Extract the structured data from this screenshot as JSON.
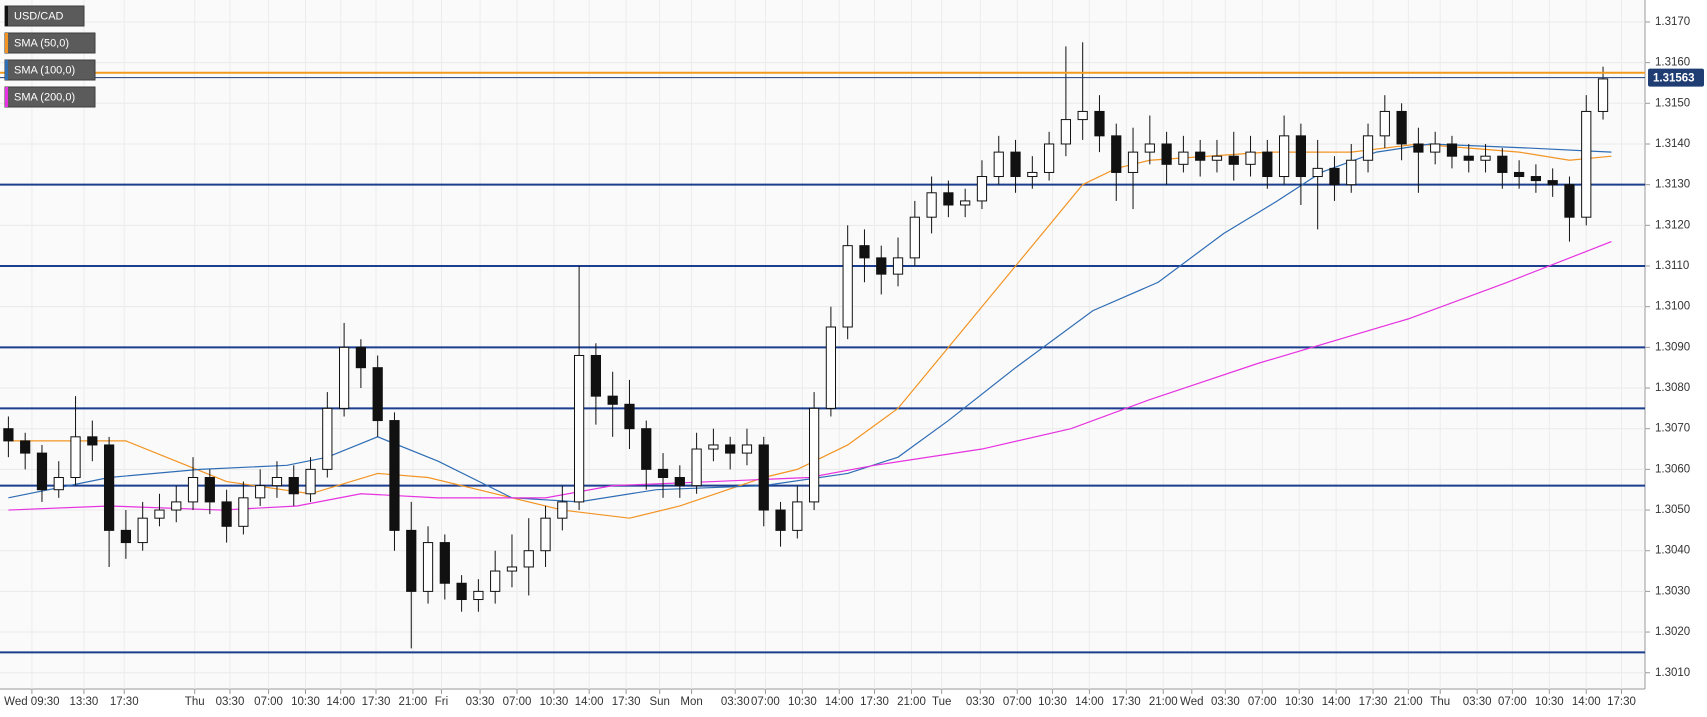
{
  "chart_data": {
    "type": "candlestick",
    "title": "USD/CAD",
    "xlim": [
      -0.5,
      97.5
    ],
    "ylim": [
      1.3006,
      1.31754
    ],
    "yticks": [
      {
        "value": 1.301,
        "label": "1.3010"
      },
      {
        "value": 1.302,
        "label": "1.3020"
      },
      {
        "value": 1.303,
        "label": "1.3030"
      },
      {
        "value": 1.304,
        "label": "1.3040"
      },
      {
        "value": 1.305,
        "label": "1.3050"
      },
      {
        "value": 1.306,
        "label": "1.3060"
      },
      {
        "value": 1.307,
        "label": "1.3070"
      },
      {
        "value": 1.308,
        "label": "1.3080"
      },
      {
        "value": 1.309,
        "label": "1.3090"
      },
      {
        "value": 1.31,
        "label": "1.3100"
      },
      {
        "value": 1.311,
        "label": "1.3110"
      },
      {
        "value": 1.312,
        "label": "1.3120"
      },
      {
        "value": 1.313,
        "label": "1.3130"
      },
      {
        "value": 1.314,
        "label": "1.3140"
      },
      {
        "value": 1.315,
        "label": "1.3150"
      },
      {
        "value": 1.316,
        "label": "1.3160"
      },
      {
        "value": 1.317,
        "label": "1.3170"
      }
    ],
    "xticks": [
      {
        "value": 1.4,
        "label": "Wed 09:30"
      },
      {
        "value": 4.5,
        "label": "13:30"
      },
      {
        "value": 6.9,
        "label": "17:30"
      },
      {
        "value": 11.1,
        "label": "Thu"
      },
      {
        "value": 13.2,
        "label": "03:30"
      },
      {
        "value": 15.5,
        "label": "07:00"
      },
      {
        "value": 17.7,
        "label": "10:30"
      },
      {
        "value": 19.8,
        "label": "14:00"
      },
      {
        "value": 21.9,
        "label": "17:30"
      },
      {
        "value": 24.1,
        "label": "21:00"
      },
      {
        "value": 25.8,
        "label": "Fri"
      },
      {
        "value": 28.1,
        "label": "03:30"
      },
      {
        "value": 30.3,
        "label": "07:00"
      },
      {
        "value": 32.5,
        "label": "10:30"
      },
      {
        "value": 34.6,
        "label": "14:00"
      },
      {
        "value": 36.8,
        "label": "17:30"
      },
      {
        "value": 38.8,
        "label": "Sun"
      },
      {
        "value": 40.7,
        "label": "Mon"
      },
      {
        "value": 43.3,
        "label": "03:30"
      },
      {
        "value": 45.1,
        "label": "07:00"
      },
      {
        "value": 47.3,
        "label": "10:30"
      },
      {
        "value": 49.5,
        "label": "14:00"
      },
      {
        "value": 51.6,
        "label": "17:30"
      },
      {
        "value": 53.8,
        "label": "21:00"
      },
      {
        "value": 55.6,
        "label": "Tue"
      },
      {
        "value": 57.9,
        "label": "03:30"
      },
      {
        "value": 60.1,
        "label": "07:00"
      },
      {
        "value": 62.2,
        "label": "10:30"
      },
      {
        "value": 64.4,
        "label": "14:00"
      },
      {
        "value": 66.6,
        "label": "17:30"
      },
      {
        "value": 68.8,
        "label": "21:00"
      },
      {
        "value": 70.5,
        "label": "Wed"
      },
      {
        "value": 72.5,
        "label": "03:30"
      },
      {
        "value": 74.7,
        "label": "07:00"
      },
      {
        "value": 76.9,
        "label": "10:30"
      },
      {
        "value": 79.1,
        "label": "14:00"
      },
      {
        "value": 81.3,
        "label": "17:30"
      },
      {
        "value": 83.4,
        "label": "21:00"
      },
      {
        "value": 85.3,
        "label": "Thu"
      },
      {
        "value": 87.5,
        "label": "03:30"
      },
      {
        "value": 89.6,
        "label": "07:00"
      },
      {
        "value": 91.8,
        "label": "10:30"
      },
      {
        "value": 94.0,
        "label": "14:00"
      },
      {
        "value": 96.1,
        "label": "17:30"
      }
    ],
    "grid": true,
    "color": "#111111",
    "candles": [
      [
        1.307,
        1.3073,
        1.3063,
        1.3067
      ],
      [
        1.3067,
        1.3069,
        1.306,
        1.3064
      ],
      [
        1.3064,
        1.3066,
        1.3052,
        1.3055
      ],
      [
        1.3055,
        1.3062,
        1.3053,
        1.3058
      ],
      [
        1.3058,
        1.3078,
        1.3056,
        1.3068
      ],
      [
        1.3068,
        1.3072,
        1.3062,
        1.3066
      ],
      [
        1.3066,
        1.3068,
        1.3036,
        1.3045
      ],
      [
        1.3045,
        1.305,
        1.3038,
        1.3042
      ],
      [
        1.3042,
        1.3052,
        1.304,
        1.3048
      ],
      [
        1.3048,
        1.3054,
        1.3046,
        1.305
      ],
      [
        1.305,
        1.3056,
        1.3047,
        1.3052
      ],
      [
        1.3052,
        1.3063,
        1.305,
        1.3058
      ],
      [
        1.3058,
        1.306,
        1.3049,
        1.3052
      ],
      [
        1.3052,
        1.3055,
        1.3042,
        1.3046
      ],
      [
        1.3046,
        1.3057,
        1.3044,
        1.3053
      ],
      [
        1.3053,
        1.306,
        1.3051,
        1.3056
      ],
      [
        1.3056,
        1.3062,
        1.3053,
        1.3058
      ],
      [
        1.3058,
        1.3061,
        1.3051,
        1.3054
      ],
      [
        1.3054,
        1.3063,
        1.3052,
        1.306
      ],
      [
        1.306,
        1.3079,
        1.3058,
        1.3075
      ],
      [
        1.3075,
        1.3096,
        1.3073,
        1.309
      ],
      [
        1.309,
        1.3092,
        1.308,
        1.3085
      ],
      [
        1.3085,
        1.3088,
        1.3068,
        1.3072
      ],
      [
        1.3072,
        1.3074,
        1.304,
        1.3045
      ],
      [
        1.3045,
        1.3052,
        1.3016,
        1.303
      ],
      [
        1.303,
        1.3046,
        1.3027,
        1.3042
      ],
      [
        1.3042,
        1.3044,
        1.3028,
        1.3032
      ],
      [
        1.3032,
        1.3034,
        1.3025,
        1.3028
      ],
      [
        1.3028,
        1.3033,
        1.3025,
        1.303
      ],
      [
        1.303,
        1.304,
        1.3027,
        1.3035
      ],
      [
        1.3035,
        1.3044,
        1.3031,
        1.3036
      ],
      [
        1.3036,
        1.3048,
        1.3029,
        1.304
      ],
      [
        1.304,
        1.3051,
        1.3036,
        1.3048
      ],
      [
        1.3048,
        1.3056,
        1.3045,
        1.3052
      ],
      [
        1.3052,
        1.311,
        1.305,
        1.3088
      ],
      [
        1.3088,
        1.3091,
        1.3071,
        1.3078
      ],
      [
        1.3078,
        1.3084,
        1.3068,
        1.3076
      ],
      [
        1.3076,
        1.3082,
        1.3065,
        1.307
      ],
      [
        1.307,
        1.3072,
        1.3055,
        1.306
      ],
      [
        1.306,
        1.3064,
        1.3053,
        1.3058
      ],
      [
        1.3058,
        1.3061,
        1.3053,
        1.3056
      ],
      [
        1.3056,
        1.3069,
        1.3054,
        1.3065
      ],
      [
        1.3065,
        1.307,
        1.3062,
        1.3066
      ],
      [
        1.3066,
        1.3068,
        1.306,
        1.3064
      ],
      [
        1.3064,
        1.307,
        1.3061,
        1.3066
      ],
      [
        1.3066,
        1.3068,
        1.3046,
        1.305
      ],
      [
        1.305,
        1.3052,
        1.3041,
        1.3045
      ],
      [
        1.3045,
        1.3056,
        1.3043,
        1.3052
      ],
      [
        1.3052,
        1.3079,
        1.305,
        1.3075
      ],
      [
        1.3075,
        1.31,
        1.3073,
        1.3095
      ],
      [
        1.3095,
        1.312,
        1.3092,
        1.3115
      ],
      [
        1.3115,
        1.3119,
        1.3106,
        1.3112
      ],
      [
        1.3112,
        1.3115,
        1.3103,
        1.3108
      ],
      [
        1.3108,
        1.3117,
        1.3105,
        1.3112
      ],
      [
        1.3112,
        1.3126,
        1.311,
        1.3122
      ],
      [
        1.3122,
        1.3132,
        1.3118,
        1.3128
      ],
      [
        1.3128,
        1.3131,
        1.3122,
        1.3125
      ],
      [
        1.3125,
        1.3129,
        1.3122,
        1.3126
      ],
      [
        1.3126,
        1.3136,
        1.3124,
        1.3132
      ],
      [
        1.3132,
        1.3142,
        1.313,
        1.3138
      ],
      [
        1.3138,
        1.3141,
        1.3128,
        1.3132
      ],
      [
        1.3132,
        1.3137,
        1.3129,
        1.3133
      ],
      [
        1.3133,
        1.3143,
        1.3131,
        1.314
      ],
      [
        1.314,
        1.3164,
        1.3137,
        1.3146
      ],
      [
        1.3146,
        1.3165,
        1.3141,
        1.3148
      ],
      [
        1.3148,
        1.3152,
        1.3138,
        1.3142
      ],
      [
        1.3142,
        1.3145,
        1.3126,
        1.3133
      ],
      [
        1.3133,
        1.3144,
        1.3124,
        1.3138
      ],
      [
        1.3138,
        1.3147,
        1.3135,
        1.314
      ],
      [
        1.314,
        1.3143,
        1.313,
        1.3135
      ],
      [
        1.3135,
        1.3142,
        1.3133,
        1.3138
      ],
      [
        1.3138,
        1.3141,
        1.3132,
        1.3136
      ],
      [
        1.3136,
        1.3141,
        1.3133,
        1.3137
      ],
      [
        1.3137,
        1.3143,
        1.3131,
        1.3135
      ],
      [
        1.3135,
        1.3142,
        1.3132,
        1.3138
      ],
      [
        1.3138,
        1.3141,
        1.3129,
        1.3132
      ],
      [
        1.3132,
        1.3147,
        1.313,
        1.3142
      ],
      [
        1.3142,
        1.3145,
        1.3125,
        1.3132
      ],
      [
        1.3132,
        1.3141,
        1.3119,
        1.3134
      ],
      [
        1.3134,
        1.3137,
        1.3126,
        1.313
      ],
      [
        1.313,
        1.314,
        1.3128,
        1.3136
      ],
      [
        1.3136,
        1.3145,
        1.3133,
        1.3142
      ],
      [
        1.3142,
        1.3152,
        1.3139,
        1.3148
      ],
      [
        1.3148,
        1.315,
        1.3136,
        1.314
      ],
      [
        1.314,
        1.3144,
        1.3128,
        1.3138
      ],
      [
        1.3138,
        1.3143,
        1.3135,
        1.314
      ],
      [
        1.314,
        1.3142,
        1.3134,
        1.3137
      ],
      [
        1.3137,
        1.314,
        1.3133,
        1.3136
      ],
      [
        1.3136,
        1.314,
        1.3133,
        1.3137
      ],
      [
        1.3137,
        1.3139,
        1.3129,
        1.3133
      ],
      [
        1.3133,
        1.3136,
        1.3129,
        1.3132
      ],
      [
        1.3132,
        1.3135,
        1.3128,
        1.3131
      ],
      [
        1.3131,
        1.3134,
        1.3127,
        1.313
      ],
      [
        1.313,
        1.3132,
        1.3116,
        1.3122
      ],
      [
        1.3122,
        1.3152,
        1.312,
        1.3148
      ],
      [
        1.3148,
        1.3159,
        1.3146,
        1.3156
      ]
    ],
    "series": [
      {
        "name": "SMA (50,0)",
        "color": "#f29423",
        "x": [
          0,
          3,
          7,
          10,
          13,
          18,
          22,
          25,
          28,
          33,
          37,
          40,
          45,
          47,
          50,
          53,
          56,
          59,
          62,
          64,
          66,
          68,
          75,
          80,
          84,
          90,
          93,
          95.5
        ],
        "values": [
          1.3067,
          1.3067,
          1.3067,
          1.3062,
          1.3057,
          1.3054,
          1.3059,
          1.3058,
          1.3055,
          1.305,
          1.3048,
          1.3051,
          1.3058,
          1.306,
          1.3066,
          1.3075,
          1.309,
          1.3105,
          1.312,
          1.313,
          1.3134,
          1.3136,
          1.3138,
          1.3138,
          1.314,
          1.3138,
          1.3136,
          1.3137
        ]
      },
      {
        "name": "SMA (100,0)",
        "color": "#2f6db5",
        "x": [
          0,
          6,
          11.4,
          16.6,
          19,
          22,
          25.6,
          30,
          34,
          38.6,
          45,
          50,
          53,
          56,
          60,
          64.6,
          68.5,
          72.4,
          75.6,
          78.2,
          81.5,
          84.7,
          90.6,
          95.5
        ],
        "values": [
          1.3053,
          1.3058,
          1.306,
          1.3061,
          1.3063,
          1.3068,
          1.3062,
          1.3053,
          1.3052,
          1.3055,
          1.3056,
          1.3059,
          1.3063,
          1.3072,
          1.3085,
          1.3099,
          1.3106,
          1.3118,
          1.3126,
          1.3133,
          1.3138,
          1.314,
          1.3139,
          1.3138
        ]
      },
      {
        "name": "SMA (200,0)",
        "color": "#e632e0",
        "x": [
          0,
          6,
          12.7,
          17.2,
          21,
          25.6,
          32,
          36,
          42,
          47.7,
          51.6,
          58,
          63.3,
          67.9,
          74.4,
          83.4,
          89.3,
          95.5
        ],
        "values": [
          1.305,
          1.3051,
          1.305,
          1.3051,
          1.3054,
          1.3053,
          1.3053,
          1.3056,
          1.3057,
          1.3058,
          1.3061,
          1.3065,
          1.307,
          1.3077,
          1.3086,
          1.3097,
          1.3106,
          1.3116
        ]
      }
    ],
    "levels": {
      "color": "#1b3f8e",
      "values": [
        1.313,
        1.311,
        1.309,
        1.3075,
        1.3056,
        1.3015
      ]
    },
    "marker_line": {
      "value": 1.31575,
      "color": "#f39b1f"
    },
    "last_price": {
      "value": 1.31563,
      "label": "1.31563",
      "color": "#1f3d73"
    }
  }
}
